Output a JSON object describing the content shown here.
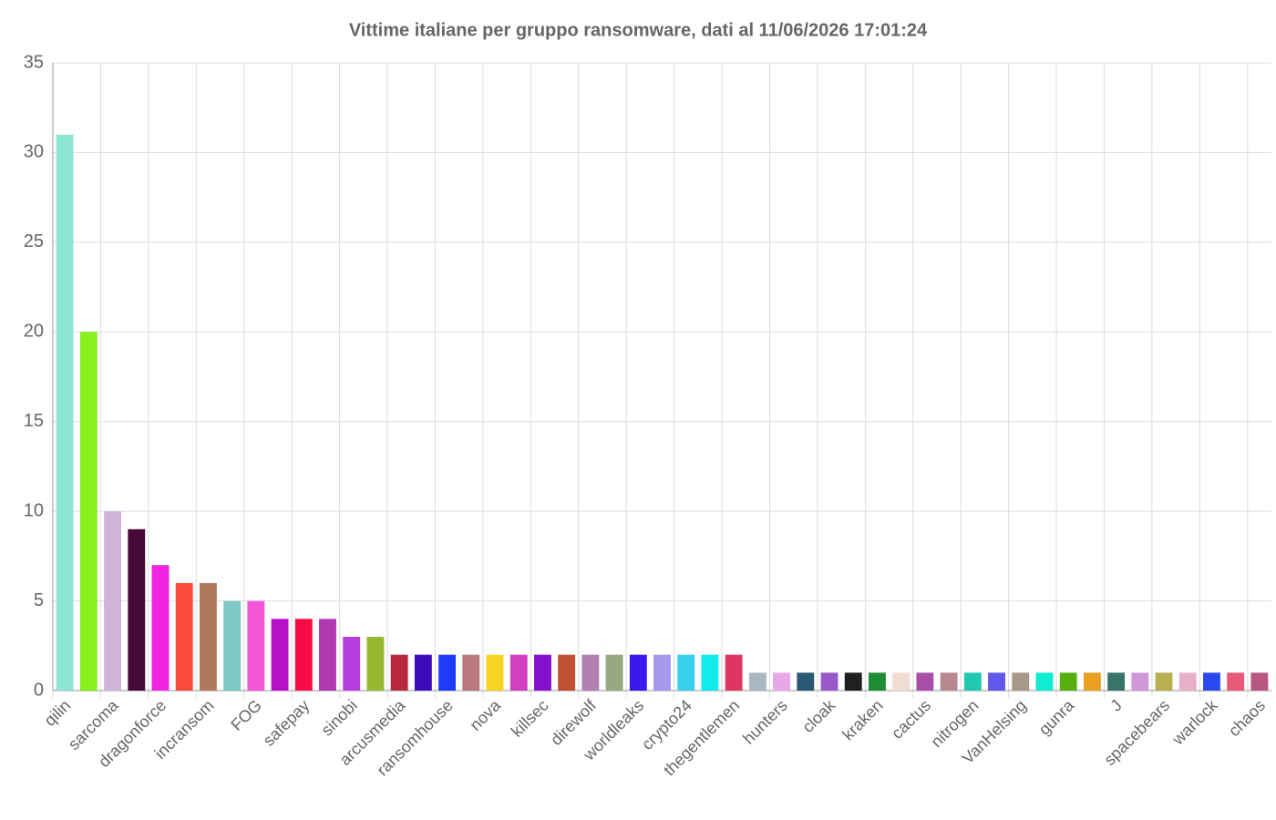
{
  "chart_data": {
    "type": "bar",
    "title": "Vittime italiane per gruppo ransomware, dati al 11/06/2026 17:01:24",
    "categories": [
      "qilin",
      null,
      "sarcoma",
      null,
      "dragonforce",
      null,
      "incransom",
      null,
      "FOG",
      null,
      "safepay",
      null,
      "sinobi",
      null,
      "arcusmedia",
      null,
      "ransomhouse",
      null,
      "nova",
      null,
      "killsec",
      null,
      "direwolf",
      null,
      "worldleaks",
      null,
      "crypto24",
      null,
      "thegentlemen",
      null,
      "hunters",
      null,
      "cloak",
      null,
      "kraken",
      null,
      "cactus",
      null,
      "nitrogen",
      null,
      "VanHelsing",
      null,
      "gunra",
      null,
      "J",
      null,
      "spacebears",
      null,
      "warlock",
      null,
      "chaos"
    ],
    "values": [
      31,
      20,
      10,
      9,
      7,
      6,
      6,
      5,
      5,
      4,
      4,
      4,
      3,
      3,
      2,
      2,
      2,
      2,
      2,
      2,
      2,
      2,
      2,
      2,
      2,
      2,
      2,
      2,
      2,
      1,
      1,
      1,
      1,
      1,
      1,
      1,
      1,
      1,
      1,
      1,
      1,
      1,
      1,
      1,
      1,
      1,
      1,
      1,
      1,
      1,
      1
    ],
    "colors": [
      "#8de5d4",
      "#88f01e",
      "#cdb4d8",
      "#470a38",
      "#f023e0",
      "#fa4a3c",
      "#b0785c",
      "#7ec8c6",
      "#f556d6",
      "#b810c8",
      "#f80a44",
      "#b038b0",
      "#b43ee0",
      "#98b832",
      "#b8283e",
      "#3c0ab8",
      "#1e3cf8",
      "#b8787c",
      "#f8d424",
      "#d040c0",
      "#8410d0",
      "#c05034",
      "#b080b0",
      "#98a880",
      "#3818ec",
      "#a898ec",
      "#38d0ec",
      "#10ecec",
      "#e03464",
      "#a8b8c0",
      "#e8a8e8",
      "#2a5870",
      "#9858c8",
      "#202020",
      "#1e8c30",
      "#f0dcd0",
      "#a850a8",
      "#b88890",
      "#20c8b0",
      "#6058e8",
      "#a89888",
      "#10ecd0",
      "#58b010",
      "#e8a020",
      "#387468",
      "#d098d8",
      "#b8b050",
      "#e8b0c8",
      "#2848f0",
      "#e85878",
      "#b85880"
    ],
    "ylim": [
      0,
      35
    ],
    "yticks": [
      0,
      5,
      10,
      15,
      20,
      25,
      30,
      35
    ],
    "grid": true
  }
}
